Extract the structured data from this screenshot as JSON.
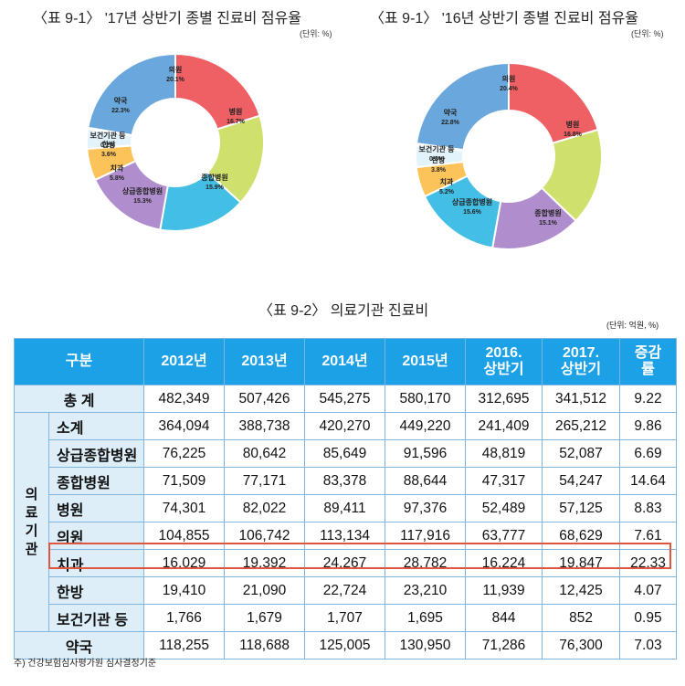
{
  "chart_data": [
    {
      "type": "pie",
      "title": "〈표 9-1〉 '17년 상반기 종별 진료비 점유율",
      "unit": "(단위: %)",
      "slices": [
        {
          "label": "의원",
          "value": 20.1,
          "pct": "20.1%",
          "color": "#ee6064"
        },
        {
          "label": "병원",
          "value": 16.7,
          "pct": "16.7%",
          "color": "#cfe06c"
        },
        {
          "label": "종합병원",
          "value": 15.9,
          "pct": "15.9%",
          "color": "#43bfe6"
        },
        {
          "label": "상급종합병원",
          "value": 15.3,
          "pct": "15.3%",
          "color": "#b08ecd"
        },
        {
          "label": "치과",
          "value": 5.8,
          "pct": "5.8%",
          "color": "#fbc35a"
        },
        {
          "label": "한방",
          "value": 3.6,
          "pct": "3.6%",
          "color": "#e3f3fb"
        },
        {
          "label": "보건기관 등",
          "value": 0.2,
          "pct": "0.2%",
          "color": "#9fd1ee"
        },
        {
          "label": "약국",
          "value": 22.3,
          "pct": "22.3%",
          "color": "#6aa7dc"
        }
      ]
    },
    {
      "type": "pie",
      "title": "〈표 9-1〉 '16년 상반기 종별 진료비 점유율",
      "unit": "(단위: %)",
      "slices": [
        {
          "label": "의원",
          "value": 20.4,
          "pct": "20.4%",
          "color": "#ee6064"
        },
        {
          "label": "병원",
          "value": 16.8,
          "pct": "16.8%",
          "color": "#cfe06c"
        },
        {
          "label": "상급종합병원",
          "value": 15.6,
          "pct": "15.6%",
          "color": "#b08ecd"
        },
        {
          "label": "종합병원",
          "value": 15.1,
          "pct": "15.1%",
          "color": "#43bfe6"
        },
        {
          "label": "치과",
          "value": 5.2,
          "pct": "5.2%",
          "color": "#fbc35a"
        },
        {
          "label": "한방",
          "value": 3.8,
          "pct": "3.8%",
          "color": "#e3f3fb"
        },
        {
          "label": "보건기관 등",
          "value": 0.3,
          "pct": "0.3%",
          "color": "#9fd1ee"
        },
        {
          "label": "약국",
          "value": 22.8,
          "pct": "22.8%",
          "color": "#6aa7dc"
        }
      ]
    },
    {
      "type": "table",
      "title": "〈표 9-2〉 의료기관 진료비",
      "unit": "(단위: 억원, %)",
      "side_label": [
        "의",
        "료",
        "기",
        "관"
      ],
      "header": [
        "구분",
        "2012년",
        "2013년",
        "2014년",
        "2015년",
        "2016. 상반기",
        "2017. 상반기",
        "증감률"
      ],
      "header_lines": [
        [
          "구분"
        ],
        [
          "2012년"
        ],
        [
          "2013년"
        ],
        [
          "2014년"
        ],
        [
          "2015년"
        ],
        [
          "2016.",
          "상반기"
        ],
        [
          "2017.",
          "상반기"
        ],
        [
          "증감",
          "률"
        ]
      ],
      "total_row": {
        "label": "총 계",
        "values": [
          "482,349",
          "507,426",
          "545,275",
          "580,170",
          "312,695",
          "341,512",
          "9.22"
        ]
      },
      "rows": [
        {
          "label": "소계",
          "values": [
            "364,094",
            "388,738",
            "420,270",
            "449,220",
            "241,409",
            "265,212",
            "9.86"
          ]
        },
        {
          "label": "상급종합병원",
          "values": [
            "76,225",
            "80,642",
            "85,649",
            "91,596",
            "48,819",
            "52,087",
            "6.69"
          ]
        },
        {
          "label": "종합병원",
          "values": [
            "71,509",
            "77,171",
            "83,378",
            "88,644",
            "47,317",
            "54,247",
            "14.64"
          ]
        },
        {
          "label": "병원",
          "values": [
            "74,301",
            "82,022",
            "89,411",
            "97,376",
            "52,489",
            "57,125",
            "8.83"
          ]
        },
        {
          "label": "의원",
          "values": [
            "104,855",
            "106,742",
            "113,134",
            "117,916",
            "63,777",
            "68,629",
            "7.61"
          ]
        },
        {
          "label": "치과",
          "values": [
            "16,029",
            "19,392",
            "24,267",
            "28,782",
            "16,224",
            "19,847",
            "22.33"
          ]
        },
        {
          "label": "한방",
          "values": [
            "19,410",
            "21,090",
            "22,724",
            "23,210",
            "11,939",
            "12,425",
            "4.07"
          ]
        },
        {
          "label": "보건기관 등",
          "values": [
            "1,766",
            "1,679",
            "1,707",
            "1,695",
            "844",
            "852",
            "0.95"
          ]
        }
      ],
      "pharmacy_row": {
        "label": "약국",
        "values": [
          "118,255",
          "118,688",
          "125,005",
          "130,950",
          "71,286",
          "76,300",
          "7.03"
        ]
      },
      "highlighted_row": "치과"
    }
  ],
  "footnote": "주) 건강보험심사평가원 심사결정기준"
}
